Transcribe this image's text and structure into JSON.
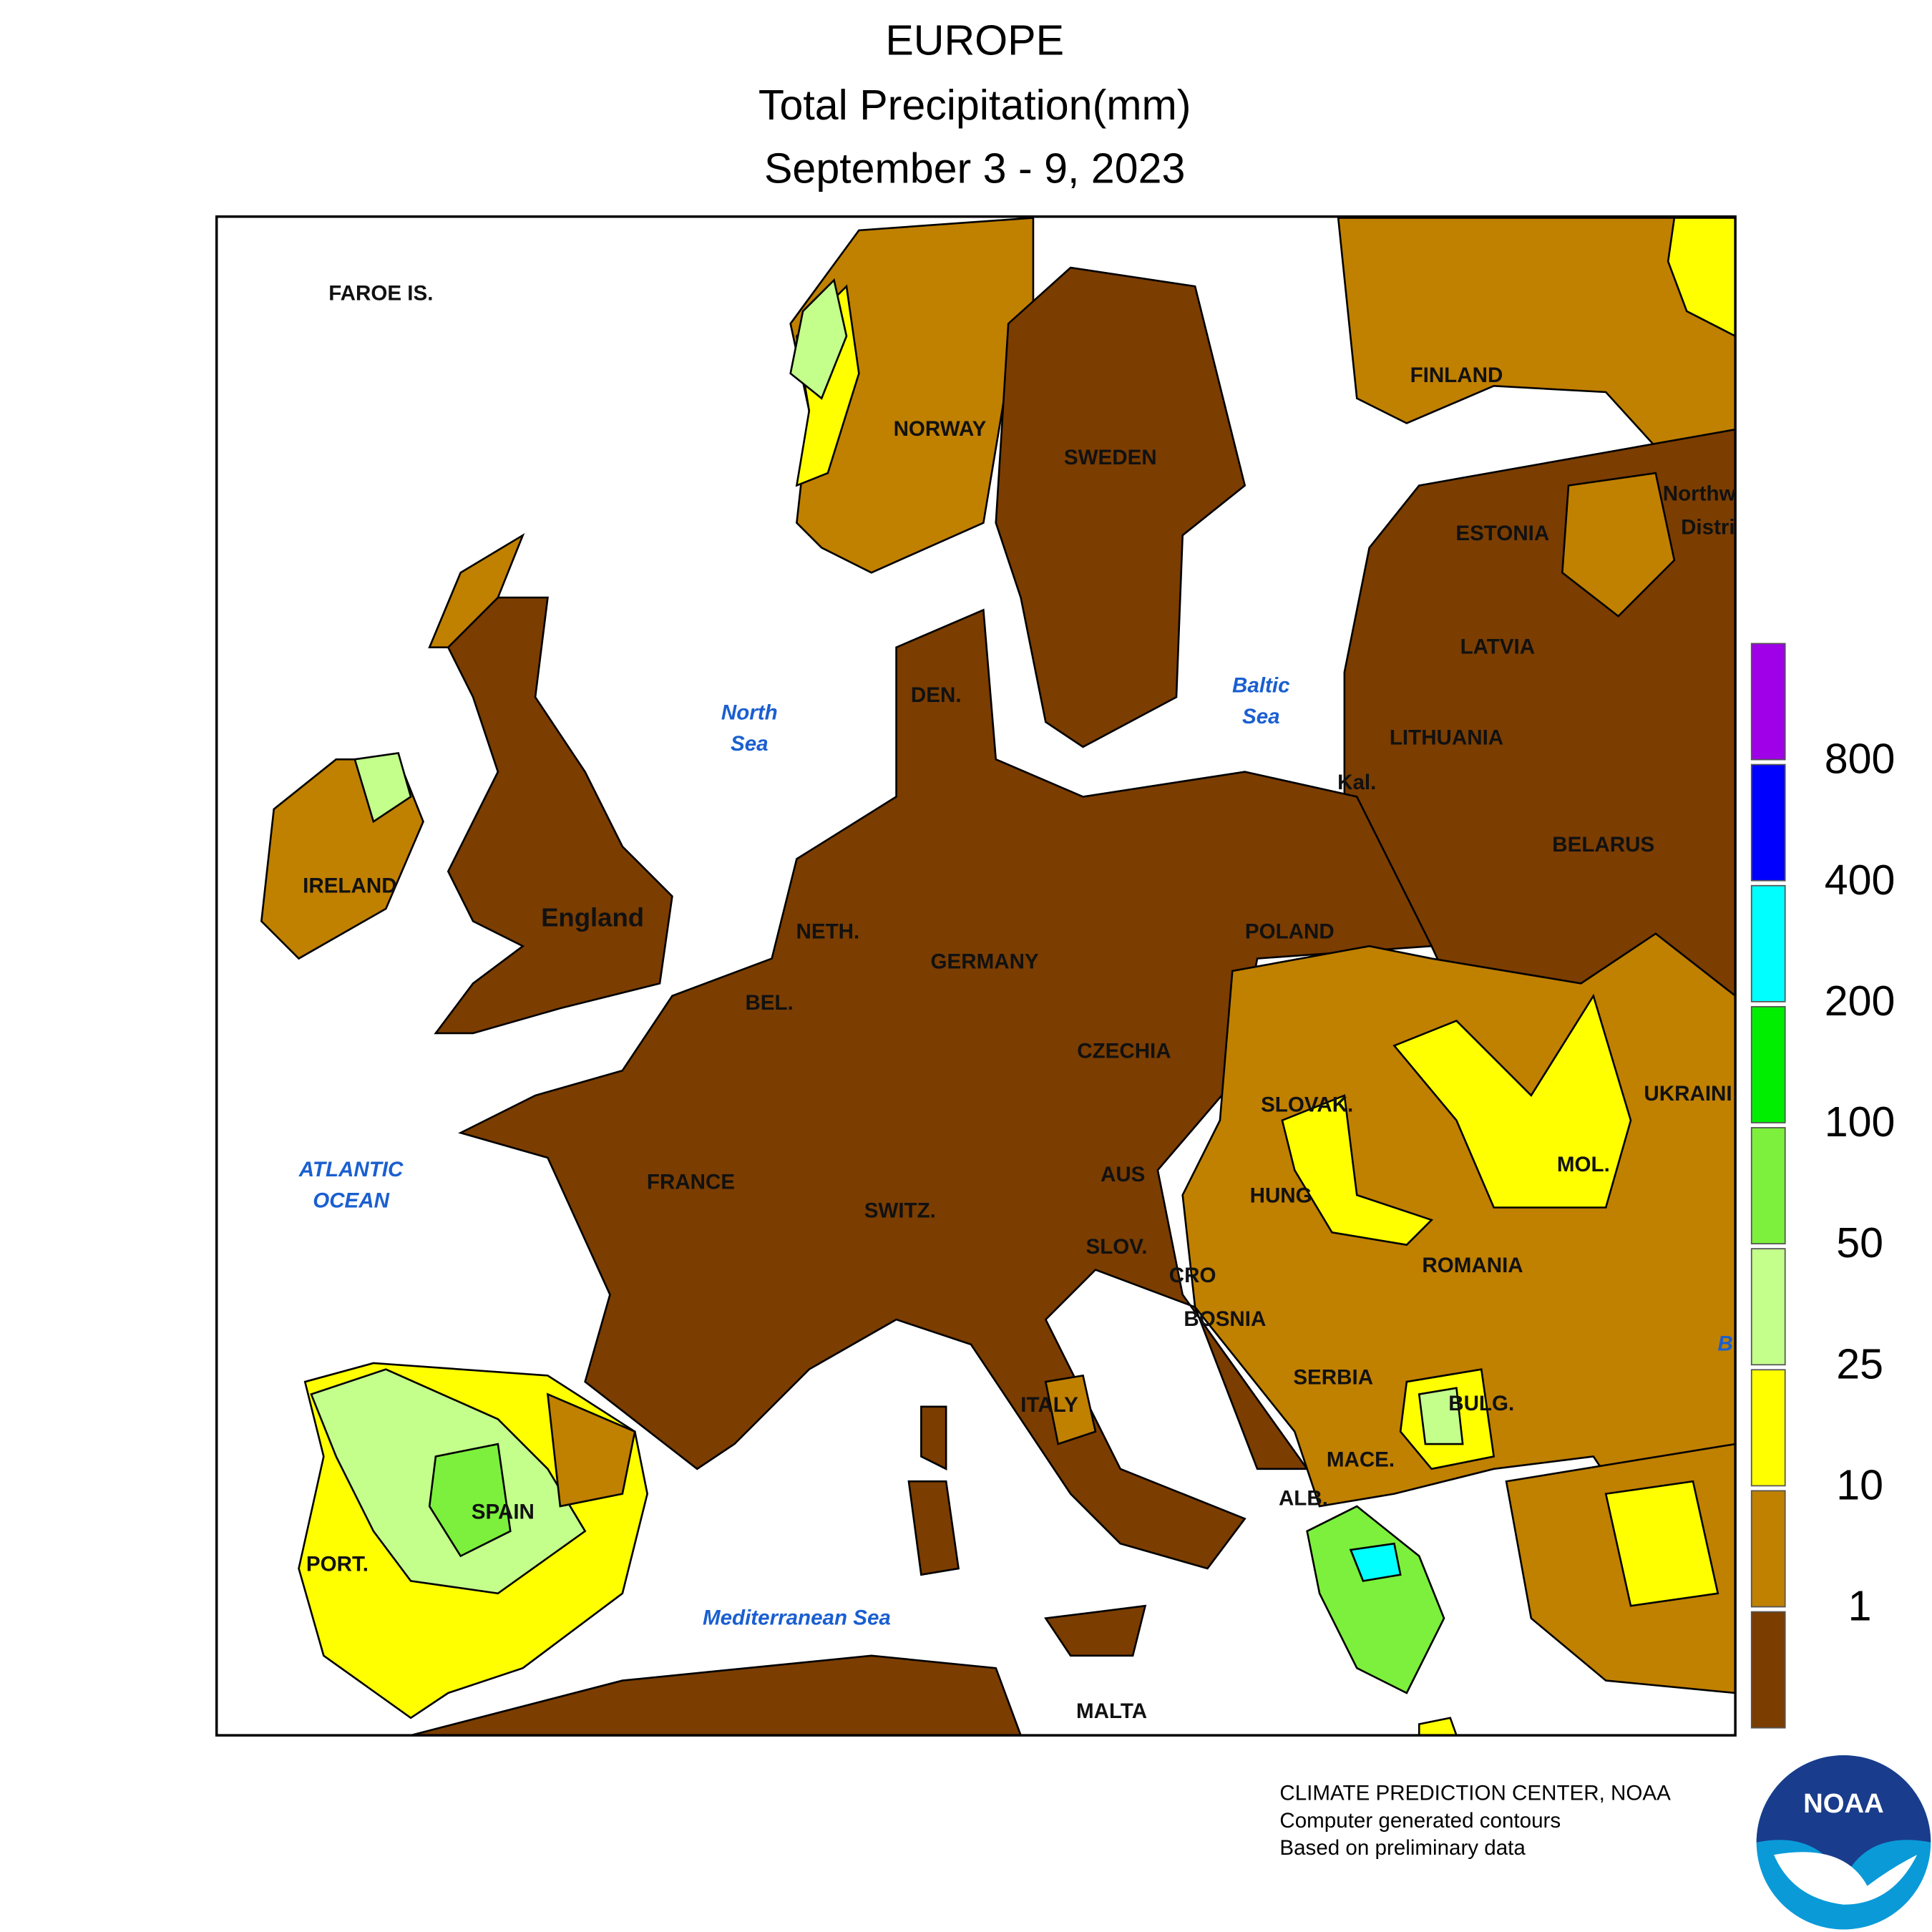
{
  "header": {
    "title": "EUROPE",
    "subtitle": "Total Precipitation(mm)",
    "dates": "September 3 - 9, 2023"
  },
  "map": {
    "labels": [
      "FAROE IS.",
      "NORWAY",
      "SWEDEN",
      "FINLAND",
      "ESTONIA",
      "Northw",
      "Distri",
      "LATVIA",
      "LITHUANIA",
      "Kal.",
      "BELARUS",
      "DEN.",
      "IRELAND",
      "England",
      "NETH.",
      "BEL.",
      "GERMANY",
      "POLAND",
      "CZECHIA",
      "SLOVAK.",
      "UKRAINI",
      "FRANCE",
      "SWITZ.",
      "AUS",
      "HUNG",
      "MOL.",
      "SLOV.",
      "CRO",
      "BOSNIA",
      "ROMANIA",
      "SERBIA",
      "BULG.",
      "ITALY",
      "MACE.",
      "ALB.",
      "SPAIN",
      "PORT.",
      "MALTA"
    ],
    "sea_labels": [
      "North",
      "Sea",
      "Baltic",
      "Sea",
      "ATLANTIC",
      "OCEAN",
      "Mediterranean Sea",
      "B"
    ]
  },
  "legend": {
    "ticks": [
      1,
      10,
      25,
      50,
      100,
      200,
      400,
      800
    ],
    "colors": [
      "#7b3d00",
      "#c08000",
      "#ffff00",
      "#c4ff8c",
      "#7cf03c",
      "#00ee00",
      "#00ffff",
      "#0000ff",
      "#a000e8"
    ]
  },
  "credits": [
    "CLIMATE PREDICTION CENTER, NOAA",
    "Computer generated contours",
    "Based on preliminary data"
  ],
  "logo": "NOAA"
}
